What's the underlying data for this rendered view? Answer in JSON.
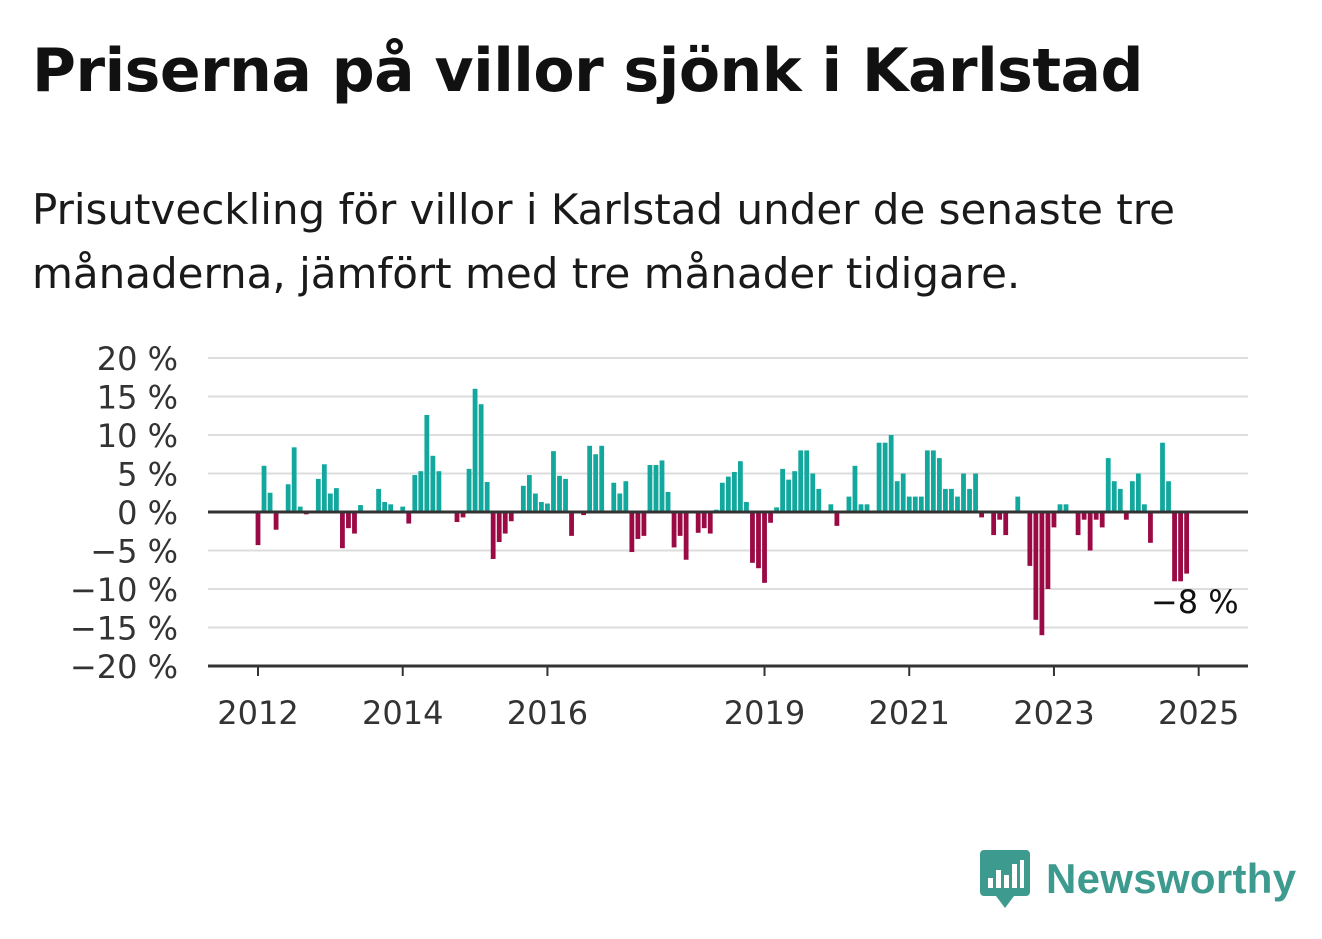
{
  "header": {
    "title": "Priserna på villor sjönk i Karlstad",
    "subtitle": "Prisutveckling för villor i Karlstad under de senaste tre månaderna, jämfört med tre månader tidigare."
  },
  "branding": {
    "name": "Newsworthy",
    "icon": "bar-chart-speech-bubble-icon",
    "color": "#3d9a8f"
  },
  "chart_data": {
    "type": "bar",
    "y_unit": "%",
    "ylim": [
      -20,
      20
    ],
    "y_ticks": [
      20,
      15,
      10,
      5,
      0,
      -5,
      -10,
      -15,
      -20
    ],
    "y_tick_labels": [
      "20 %",
      "15 %",
      "10 %",
      "5 %",
      "0 %",
      "−5 %",
      "−10 %",
      "−15 %",
      "−20 %"
    ],
    "x_start": "2012-01",
    "x_tick_labels": [
      {
        "label": "2012",
        "month": "2012-01"
      },
      {
        "label": "2014",
        "month": "2014-01"
      },
      {
        "label": "2016",
        "month": "2016-01"
      },
      {
        "label": "2019",
        "month": "2019-01"
      },
      {
        "label": "2021",
        "month": "2021-01"
      },
      {
        "label": "2023",
        "month": "2023-01"
      },
      {
        "label": "2025",
        "month": "2025-01"
      }
    ],
    "grid": true,
    "colors": {
      "positive": "#13a89e",
      "negative": "#9b0a45",
      "grid": "#dddddd",
      "axis": "#333333"
    },
    "annotation": {
      "text": "−8 %",
      "month": "2025-01"
    },
    "values": [
      -4.3,
      6,
      2.5,
      -2.3,
      0,
      3.6,
      8.4,
      0.7,
      -0.3,
      0,
      4.3,
      6.2,
      2.4,
      3.1,
      -4.7,
      -2.1,
      -2.8,
      0.9,
      0,
      0.2,
      3,
      1.3,
      1,
      0,
      0.7,
      -1.5,
      4.8,
      5.3,
      12.6,
      7.3,
      5.3,
      0,
      0,
      -1.3,
      -0.7,
      5.6,
      16,
      14,
      3.9,
      -6.1,
      -3.9,
      -2.8,
      -1.2,
      0,
      3.4,
      4.8,
      2.4,
      1.3,
      1.1,
      7.9,
      4.7,
      4.3,
      -3.1,
      0,
      -0.4,
      8.6,
      7.5,
      8.6,
      0,
      3.8,
      2.4,
      4,
      -5.2,
      -3.5,
      -3.1,
      6.1,
      6.1,
      6.7,
      2.6,
      -4.6,
      -3.1,
      -6.2,
      0,
      -2.7,
      -2.1,
      -2.8,
      0.3,
      3.8,
      4.6,
      5.2,
      6.6,
      1.3,
      -6.6,
      -7.3,
      -9.2,
      -1.4,
      0.6,
      5.6,
      4.2,
      5.3,
      8,
      8,
      5,
      3,
      0,
      1,
      -1.8,
      0,
      2,
      6,
      1,
      1,
      0,
      9,
      9,
      10,
      4,
      5,
      2,
      2,
      2,
      8,
      8,
      7,
      3,
      3,
      2,
      5,
      3,
      5,
      -0.7,
      0,
      -3,
      -1,
      -3,
      0,
      2,
      0,
      -7,
      -14,
      -16,
      -10,
      -2,
      1,
      1,
      0,
      -3,
      -1,
      -5,
      -1,
      -2,
      7,
      4,
      3,
      -1,
      4,
      5,
      1,
      -4,
      0,
      9,
      4,
      -9,
      -9,
      -8
    ]
  }
}
